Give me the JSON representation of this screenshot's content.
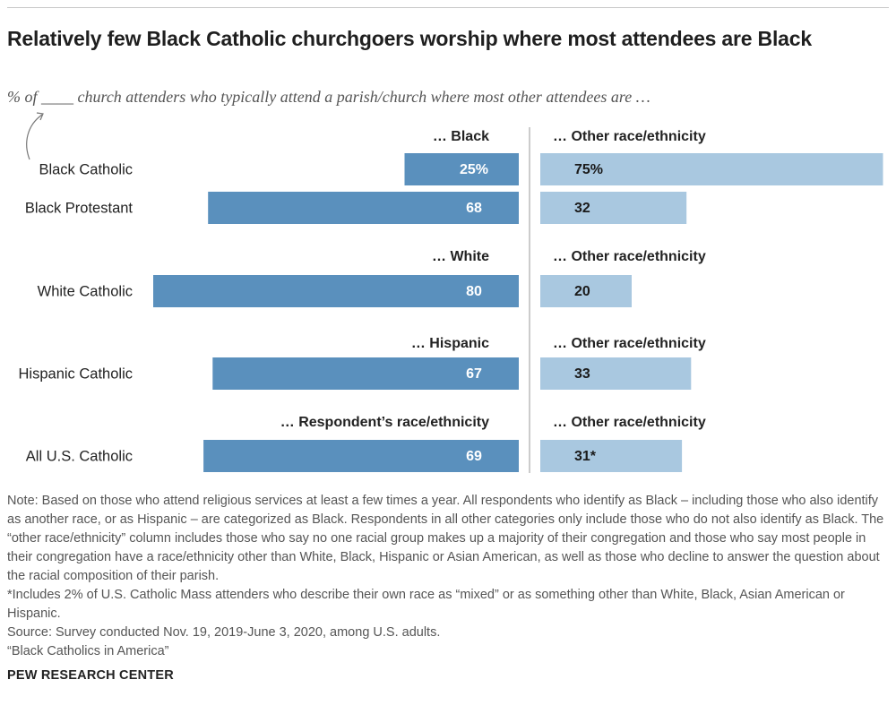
{
  "title": "Relatively few Black Catholic churchgoers worship where most attendees are Black",
  "subtitle": "% of ____ church attenders who typically attend a parish/church where most other attendees are …",
  "chart_data": {
    "type": "bar",
    "orientation": "horizontal-diverging",
    "groups": [
      {
        "left_header": "… Black",
        "right_header": "… Other race/ethnicity",
        "rows": [
          {
            "label": "Black Catholic",
            "left_value": 25,
            "left_label": "25%",
            "right_value": 75,
            "right_label": "75%"
          },
          {
            "label": "Black Protestant",
            "left_value": 68,
            "left_label": "68",
            "right_value": 32,
            "right_label": "32"
          }
        ]
      },
      {
        "left_header": "… White",
        "right_header": "… Other race/ethnicity",
        "rows": [
          {
            "label": "White Catholic",
            "left_value": 80,
            "left_label": "80",
            "right_value": 20,
            "right_label": "20"
          }
        ]
      },
      {
        "left_header": "… Hispanic",
        "right_header": "… Other race/ethnicity",
        "rows": [
          {
            "label": "Hispanic Catholic",
            "left_value": 67,
            "left_label": "67",
            "right_value": 33,
            "right_label": "33"
          }
        ]
      },
      {
        "left_header": "… Respondent’s race/ethnicity",
        "right_header": "… Other race/ethnicity",
        "rows": [
          {
            "label": "All U.S. Catholic",
            "left_value": 69,
            "left_label": "69",
            "right_value": 31,
            "right_label": "31*"
          }
        ]
      }
    ],
    "colors": {
      "left": "#5a90bd",
      "right": "#a9c8e0"
    },
    "grid": false,
    "legend": "none"
  },
  "notes": [
    "Note: Based on those who attend religious services at least a few times a year. All respondents who identify as Black – including those who also identify as another race, or as Hispanic – are categorized as Black. Respondents in all other categories only include those who do not also identify as Black. The “other race/ethnicity” column includes those who say no one racial group makes up a majority of their congregation and those who say most people in their congregation have a race/ethnicity other than White, Black, Hispanic or Asian American, as well as those who decline to answer the question about the racial composition of their parish.",
    "*Includes 2% of U.S. Catholic Mass attenders who describe their own race as “mixed” or as something other than White, Black, Asian American or Hispanic.",
    "Source: Survey conducted Nov. 19, 2019-June 3, 2020, among U.S. adults.",
    "“Black Catholics in America”"
  ],
  "footer": "PEW RESEARCH CENTER"
}
